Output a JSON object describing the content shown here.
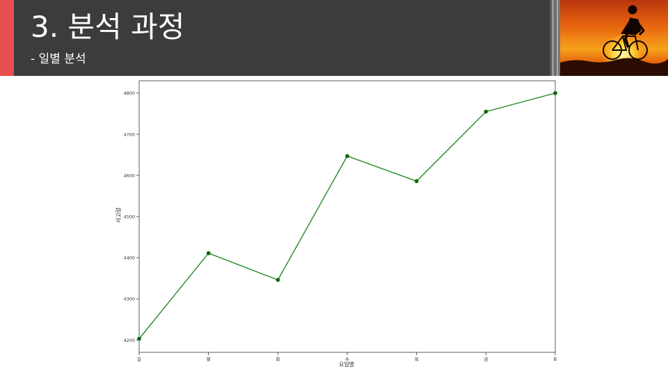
{
  "slide": {
    "title": "3. 분석 과정",
    "subtitle": "- 일별 분석",
    "accent_color": "#e84e4f",
    "header_color": "#3c3c3c",
    "photo_icon": "cyclist-sunset-photo"
  },
  "chart_data": {
    "type": "line",
    "title": "",
    "xlabel": "요일별",
    "ylabel": "사고량",
    "categories": [
      "일",
      "월",
      "화",
      "수",
      "목",
      "금",
      "토"
    ],
    "series": [
      {
        "name": "사고량",
        "color": "#228b22",
        "values": [
          4203,
          4411,
          4346,
          4647,
          4586,
          4755,
          4800
        ]
      }
    ],
    "ylim": [
      4170,
      4830
    ],
    "yticks": [
      4200,
      4300,
      4400,
      4500,
      4600,
      4700,
      4800
    ],
    "grid": false
  }
}
